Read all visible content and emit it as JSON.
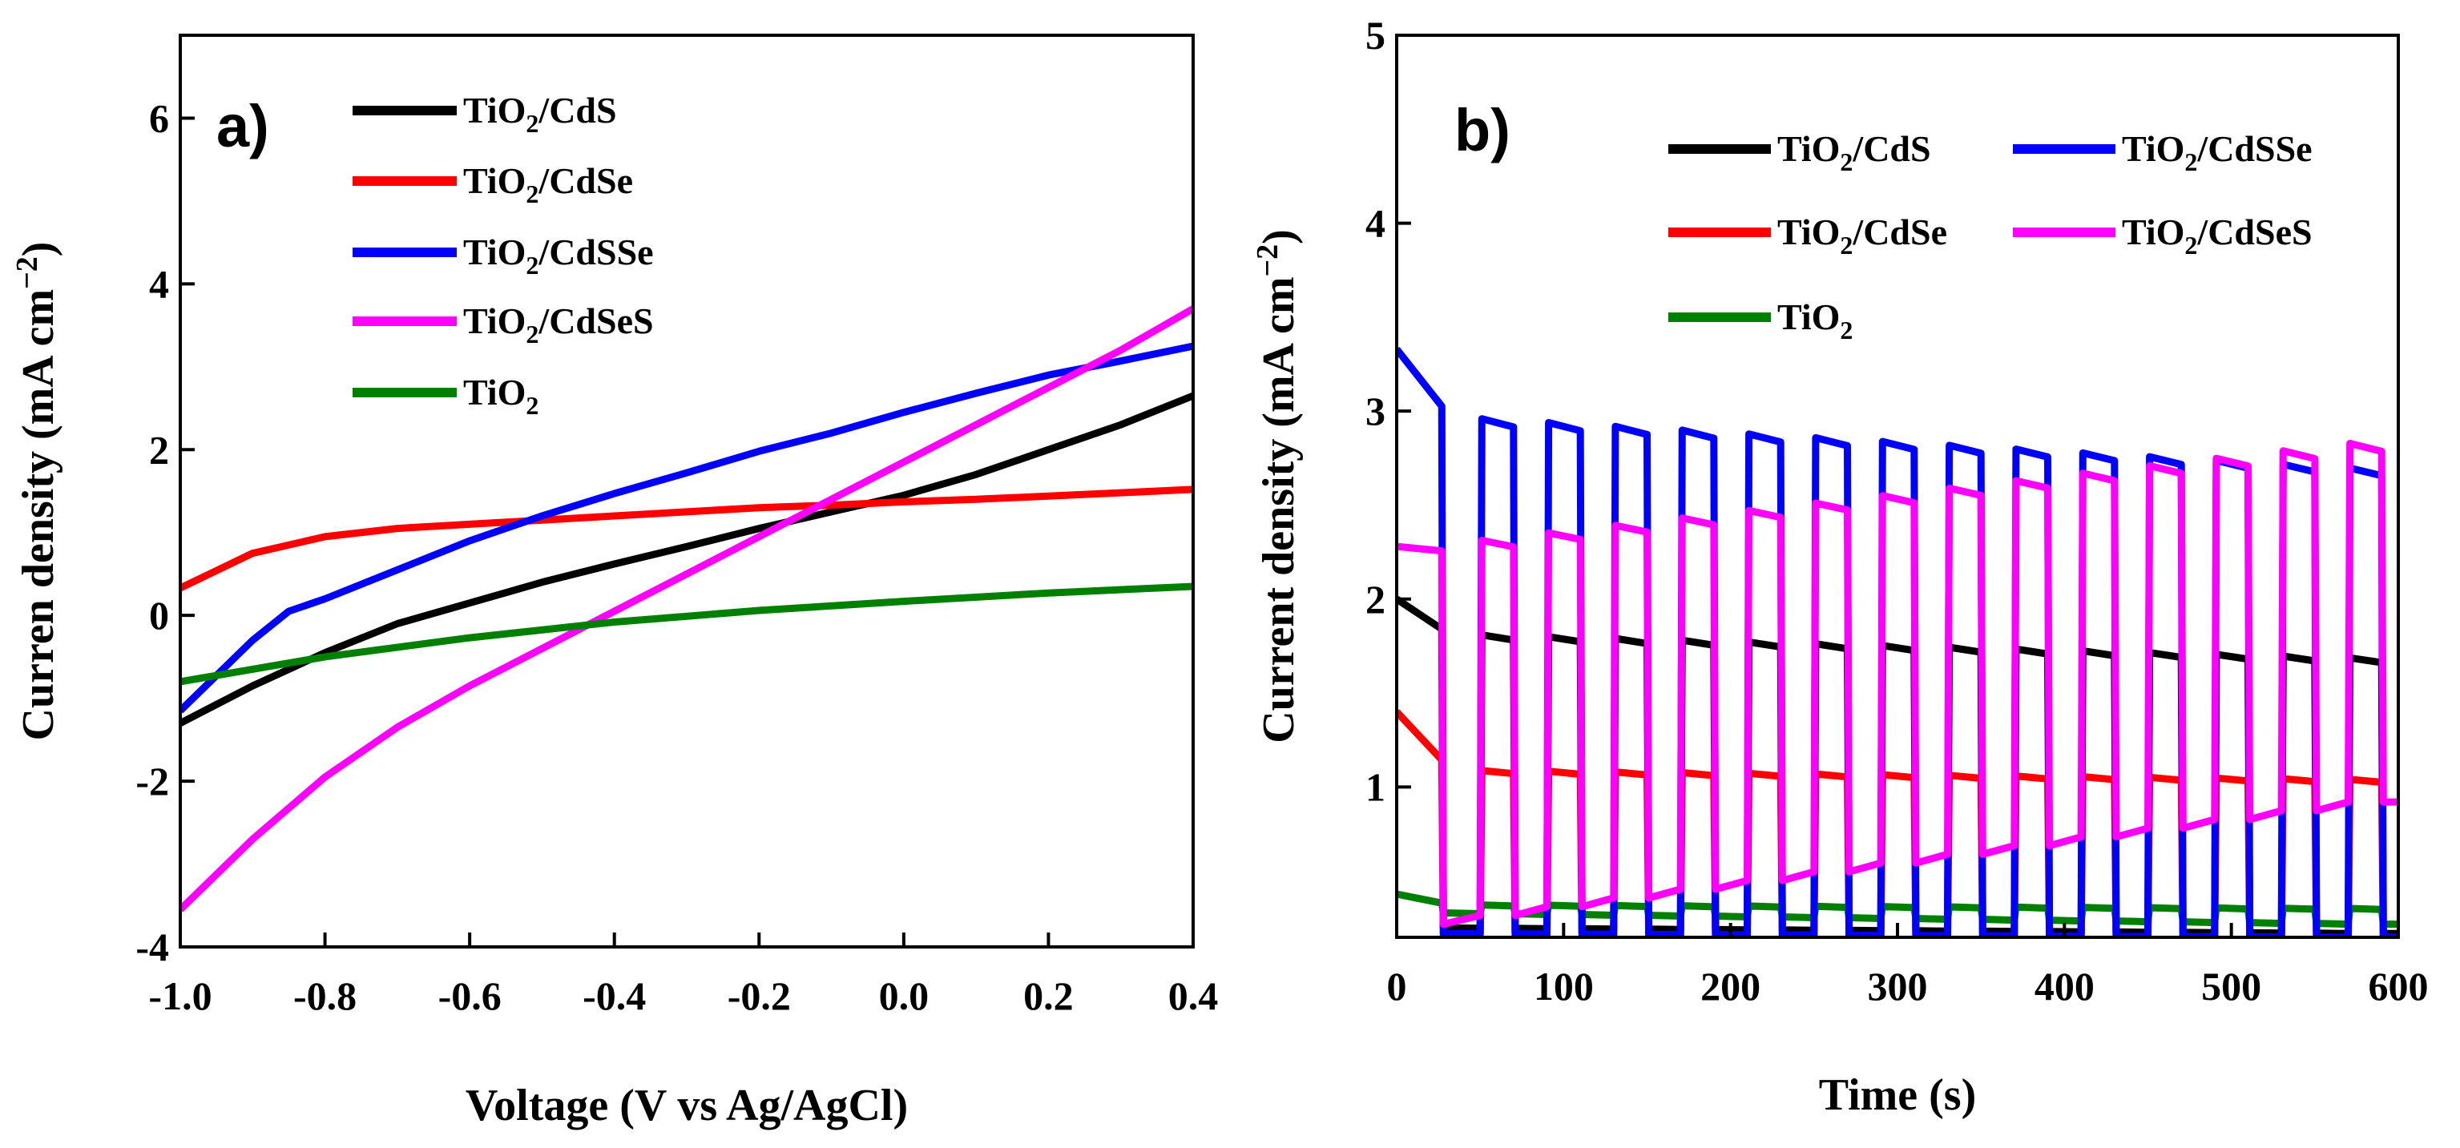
{
  "chart_data": [
    {
      "type": "line",
      "panel_label": "a)",
      "xlabel": "Voltage (V vs Ag/AgCl)",
      "ylabel": "Curren density (mA cm",
      "ylabel_sup": "−2",
      "ylabel_end": ")",
      "xlim": [
        -1.0,
        0.4
      ],
      "ylim": [
        -4,
        7
      ],
      "xticks": [
        -1.0,
        -0.8,
        -0.6,
        -0.4,
        -0.2,
        0.0,
        0.2,
        0.4
      ],
      "xtick_labels": [
        "-1.0",
        "-0.8",
        "-0.6",
        "-0.4",
        "-0.2",
        "0.0",
        "0.2",
        "0.4"
      ],
      "yticks": [
        -4,
        -2,
        0,
        2,
        4,
        6
      ],
      "ytick_labels": [
        "-4",
        "-2",
        "0",
        "2",
        "4",
        "6"
      ],
      "legend_position": "top-left",
      "series": [
        {
          "id": "tio2-cds",
          "name": "TiO2/CdS",
          "label_main": "TiO",
          "label_sub": "2",
          "label_rest": "/CdS",
          "color": "#000000",
          "x": [
            -1.0,
            -0.9,
            -0.8,
            -0.7,
            -0.6,
            -0.5,
            -0.4,
            -0.3,
            -0.2,
            -0.1,
            0.0,
            0.1,
            0.2,
            0.3,
            0.4
          ],
          "y": [
            -1.3,
            -0.85,
            -0.45,
            -0.1,
            0.15,
            0.4,
            0.62,
            0.83,
            1.05,
            1.25,
            1.45,
            1.7,
            2.0,
            2.3,
            2.65
          ]
        },
        {
          "id": "tio2-cdse",
          "name": "TiO2/CdSe",
          "label_main": "TiO",
          "label_sub": "2",
          "label_rest": "/CdSe",
          "color": "#ff0000",
          "x": [
            -1.0,
            -0.9,
            -0.8,
            -0.7,
            -0.6,
            -0.5,
            -0.4,
            -0.3,
            -0.2,
            -0.1,
            0.0,
            0.1,
            0.2,
            0.3,
            0.4
          ],
          "y": [
            0.33,
            0.75,
            0.95,
            1.05,
            1.1,
            1.15,
            1.2,
            1.25,
            1.3,
            1.33,
            1.37,
            1.4,
            1.44,
            1.48,
            1.52
          ]
        },
        {
          "id": "tio2-cdsse",
          "name": "TiO2/CdSSe",
          "label_main": "TiO",
          "label_sub": "2",
          "label_rest": "/CdSSe",
          "color": "#0000ff",
          "x": [
            -1.0,
            -0.9,
            -0.85,
            -0.8,
            -0.7,
            -0.6,
            -0.5,
            -0.4,
            -0.3,
            -0.2,
            -0.1,
            0.0,
            0.1,
            0.2,
            0.3,
            0.4
          ],
          "y": [
            -1.15,
            -0.3,
            0.05,
            0.2,
            0.55,
            0.9,
            1.2,
            1.47,
            1.72,
            1.98,
            2.2,
            2.45,
            2.68,
            2.9,
            3.07,
            3.25
          ]
        },
        {
          "id": "tio2-cdses",
          "name": "TiO2/CdSeS",
          "label_main": "TiO",
          "label_sub": "2",
          "label_rest": "/CdSeS",
          "color": "#ff00ff",
          "x": [
            -1.0,
            -0.9,
            -0.8,
            -0.7,
            -0.6,
            -0.5,
            -0.4,
            -0.3,
            -0.2,
            -0.1,
            0.0,
            0.1,
            0.2,
            0.3,
            0.4
          ],
          "y": [
            -3.55,
            -2.7,
            -1.95,
            -1.35,
            -0.85,
            -0.4,
            0.05,
            0.5,
            0.95,
            1.4,
            1.85,
            2.3,
            2.75,
            3.2,
            3.7
          ]
        },
        {
          "id": "tio2",
          "name": "TiO2",
          "label_main": "TiO",
          "label_sub": "2",
          "label_rest": "",
          "color": "#008000",
          "x": [
            -1.0,
            -0.8,
            -0.6,
            -0.4,
            -0.2,
            0.0,
            0.2,
            0.4
          ],
          "y": [
            -0.8,
            -0.5,
            -0.27,
            -0.08,
            0.06,
            0.17,
            0.27,
            0.35
          ]
        }
      ]
    },
    {
      "type": "line",
      "panel_label": "b)",
      "xlabel": "Time (s)",
      "ylabel": "Current density (mA cm",
      "ylabel_sup": "−2",
      "ylabel_end": ")",
      "xlim": [
        0,
        600
      ],
      "ylim": [
        0.2,
        5
      ],
      "xticks": [
        0,
        100,
        200,
        300,
        400,
        500,
        600
      ],
      "xtick_labels": [
        "0",
        "100",
        "200",
        "300",
        "400",
        "500",
        "600"
      ],
      "yticks": [
        1,
        2,
        3,
        4,
        5
      ],
      "ytick_labels": [
        "1",
        "2",
        "3",
        "4",
        "5"
      ],
      "legend_position": "top-right",
      "series": [
        {
          "id": "tio2-cds",
          "name": "TiO2/CdS",
          "label_main": "TiO",
          "label_sub": "2",
          "label_rest": "/CdS",
          "color": "#000000",
          "first_on": 2.0,
          "on_start": 1.8,
          "on_end": 1.67,
          "off_start": 0.25,
          "off_end": 0.22
        },
        {
          "id": "tio2-cdse",
          "name": "TiO2/CdSe",
          "label_main": "TiO",
          "label_sub": "2",
          "label_rest": "/CdSe",
          "color": "#ff0000",
          "first_on": 1.4,
          "on_start": 1.08,
          "on_end": 1.03,
          "off_start": 0.21,
          "off_end": 0.2
        },
        {
          "id": "tio2",
          "name": "TiO2",
          "label_main": "TiO",
          "label_sub": "2",
          "label_rest": "",
          "color": "#008000",
          "first_on": 0.43,
          "on_start": 0.37,
          "on_end": 0.35,
          "off_start": 0.33,
          "off_end": 0.27
        },
        {
          "id": "tio2-cdsse",
          "name": "TiO2/CdSSe",
          "label_main": "TiO",
          "label_sub": "2",
          "label_rest": "/CdSSe",
          "color": "#0000ff",
          "first_on": 3.33,
          "on_start": 2.95,
          "on_end": 2.67,
          "off_start": 0.22,
          "off_end": 0.2
        },
        {
          "id": "tio2-cdses",
          "name": "TiO2/CdSeS",
          "label_main": "TiO",
          "label_sub": "2",
          "label_rest": "/CdSeS",
          "color": "#ff00ff",
          "first_on": 2.28,
          "on_start": 2.25,
          "on_end": 2.8,
          "off_start": 0.27,
          "off_end": 0.92
        }
      ],
      "legend_order": [
        "tio2-cds",
        "tio2-cdsse",
        "tio2-cdse",
        "tio2-cdses",
        "tio2"
      ],
      "light_cycle": {
        "period_s": 40,
        "on_s": 20,
        "first_on_end_s": 27
      }
    }
  ]
}
